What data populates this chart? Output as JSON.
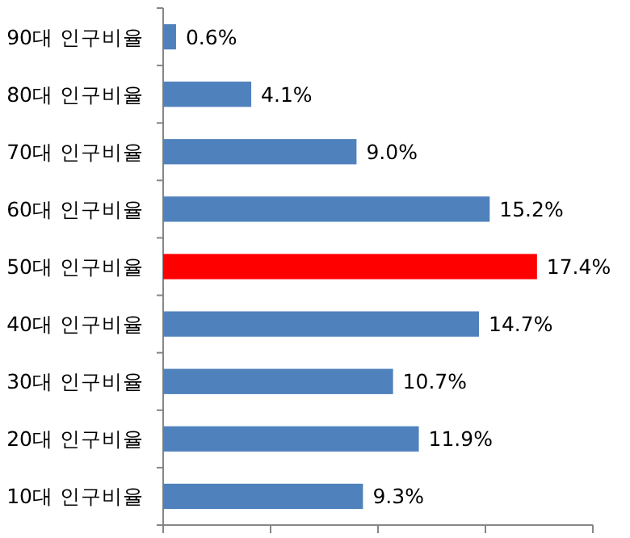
{
  "chart_data": {
    "type": "bar",
    "orientation": "horizontal",
    "categories": [
      "90대 인구비율",
      "80대 인구비율",
      "70대 인구비율",
      "60대 인구비율",
      "50대 인구비율",
      "40대 인구비율",
      "30대 인구비율",
      "20대 인구비율",
      "10대 인구비율"
    ],
    "values": [
      0.6,
      4.1,
      9.0,
      15.2,
      17.4,
      14.7,
      10.7,
      11.9,
      9.3
    ],
    "value_labels": [
      "0.6%",
      "4.1%",
      "9.0%",
      "15.2%",
      "17.4%",
      "14.7%",
      "10.7%",
      "11.9%",
      "9.3%"
    ],
    "colors": [
      "#4f81bd",
      "#4f81bd",
      "#4f81bd",
      "#4f81bd",
      "#ff0000",
      "#4f81bd",
      "#4f81bd",
      "#4f81bd",
      "#4f81bd"
    ],
    "xlim": [
      0,
      20
    ],
    "xticks": [
      {
        "value": 0,
        "label": null
      },
      {
        "value": 5,
        "label": null
      },
      {
        "value": 10,
        "label": null
      },
      {
        "value": 15,
        "label": null
      },
      {
        "value": 20,
        "label": null
      }
    ],
    "tick_labels": "y"
  }
}
